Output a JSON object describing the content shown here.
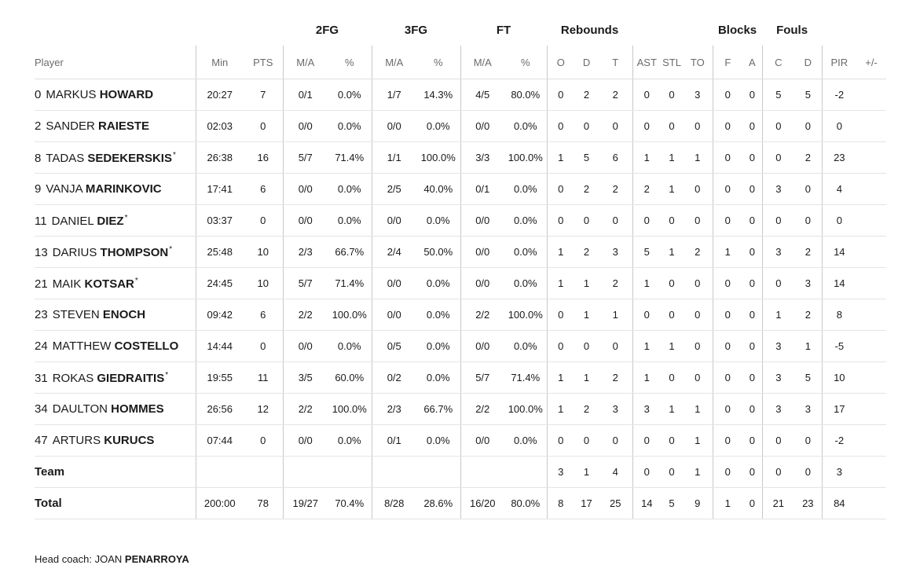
{
  "groups": {
    "fg2": "2FG",
    "fg3": "3FG",
    "ft": "FT",
    "rebounds": "Rebounds",
    "blocks": "Blocks",
    "fouls": "Fouls"
  },
  "columns": {
    "player": "Player",
    "min": "Min",
    "pts": "PTS",
    "fg2_ma": "M/A",
    "fg2_pct": "%",
    "fg3_ma": "M/A",
    "fg3_pct": "%",
    "ft_ma": "M/A",
    "ft_pct": "%",
    "reb_o": "O",
    "reb_d": "D",
    "reb_t": "T",
    "ast": "AST",
    "stl": "STL",
    "to": "TO",
    "blk_f": "F",
    "blk_a": "A",
    "foul_c": "C",
    "foul_d": "D",
    "pir": "PIR",
    "plus_minus": "+/-"
  },
  "players": [
    {
      "num": "0",
      "first": "MARKUS",
      "last": "HOWARD",
      "starter": false,
      "min": "20:27",
      "pts": "7",
      "fg2_ma": "0/1",
      "fg2_pct": "0.0%",
      "fg3_ma": "1/7",
      "fg3_pct": "14.3%",
      "ft_ma": "4/5",
      "ft_pct": "80.0%",
      "reb_o": "0",
      "reb_d": "2",
      "reb_t": "2",
      "ast": "0",
      "stl": "0",
      "to": "3",
      "blk_f": "0",
      "blk_a": "0",
      "foul_c": "5",
      "foul_d": "5",
      "pir": "-2",
      "plus_minus": ""
    },
    {
      "num": "2",
      "first": "SANDER",
      "last": "RAIESTE",
      "starter": false,
      "min": "02:03",
      "pts": "0",
      "fg2_ma": "0/0",
      "fg2_pct": "0.0%",
      "fg3_ma": "0/0",
      "fg3_pct": "0.0%",
      "ft_ma": "0/0",
      "ft_pct": "0.0%",
      "reb_o": "0",
      "reb_d": "0",
      "reb_t": "0",
      "ast": "0",
      "stl": "0",
      "to": "0",
      "blk_f": "0",
      "blk_a": "0",
      "foul_c": "0",
      "foul_d": "0",
      "pir": "0",
      "plus_minus": ""
    },
    {
      "num": "8",
      "first": "TADAS",
      "last": "SEDEKERSKIS",
      "starter": true,
      "min": "26:38",
      "pts": "16",
      "fg2_ma": "5/7",
      "fg2_pct": "71.4%",
      "fg3_ma": "1/1",
      "fg3_pct": "100.0%",
      "ft_ma": "3/3",
      "ft_pct": "100.0%",
      "reb_o": "1",
      "reb_d": "5",
      "reb_t": "6",
      "ast": "1",
      "stl": "1",
      "to": "1",
      "blk_f": "0",
      "blk_a": "0",
      "foul_c": "0",
      "foul_d": "2",
      "pir": "23",
      "plus_minus": ""
    },
    {
      "num": "9",
      "first": "VANJA",
      "last": "MARINKOVIC",
      "starter": false,
      "min": "17:41",
      "pts": "6",
      "fg2_ma": "0/0",
      "fg2_pct": "0.0%",
      "fg3_ma": "2/5",
      "fg3_pct": "40.0%",
      "ft_ma": "0/1",
      "ft_pct": "0.0%",
      "reb_o": "0",
      "reb_d": "2",
      "reb_t": "2",
      "ast": "2",
      "stl": "1",
      "to": "0",
      "blk_f": "0",
      "blk_a": "0",
      "foul_c": "3",
      "foul_d": "0",
      "pir": "4",
      "plus_minus": ""
    },
    {
      "num": "11",
      "first": "DANIEL",
      "last": "DIEZ",
      "starter": true,
      "min": "03:37",
      "pts": "0",
      "fg2_ma": "0/0",
      "fg2_pct": "0.0%",
      "fg3_ma": "0/0",
      "fg3_pct": "0.0%",
      "ft_ma": "0/0",
      "ft_pct": "0.0%",
      "reb_o": "0",
      "reb_d": "0",
      "reb_t": "0",
      "ast": "0",
      "stl": "0",
      "to": "0",
      "blk_f": "0",
      "blk_a": "0",
      "foul_c": "0",
      "foul_d": "0",
      "pir": "0",
      "plus_minus": ""
    },
    {
      "num": "13",
      "first": "DARIUS",
      "last": "THOMPSON",
      "starter": true,
      "min": "25:48",
      "pts": "10",
      "fg2_ma": "2/3",
      "fg2_pct": "66.7%",
      "fg3_ma": "2/4",
      "fg3_pct": "50.0%",
      "ft_ma": "0/0",
      "ft_pct": "0.0%",
      "reb_o": "1",
      "reb_d": "2",
      "reb_t": "3",
      "ast": "5",
      "stl": "1",
      "to": "2",
      "blk_f": "1",
      "blk_a": "0",
      "foul_c": "3",
      "foul_d": "2",
      "pir": "14",
      "plus_minus": ""
    },
    {
      "num": "21",
      "first": "MAIK",
      "last": "KOTSAR",
      "starter": true,
      "min": "24:45",
      "pts": "10",
      "fg2_ma": "5/7",
      "fg2_pct": "71.4%",
      "fg3_ma": "0/0",
      "fg3_pct": "0.0%",
      "ft_ma": "0/0",
      "ft_pct": "0.0%",
      "reb_o": "1",
      "reb_d": "1",
      "reb_t": "2",
      "ast": "1",
      "stl": "0",
      "to": "0",
      "blk_f": "0",
      "blk_a": "0",
      "foul_c": "0",
      "foul_d": "3",
      "pir": "14",
      "plus_minus": ""
    },
    {
      "num": "23",
      "first": "STEVEN",
      "last": "ENOCH",
      "starter": false,
      "min": "09:42",
      "pts": "6",
      "fg2_ma": "2/2",
      "fg2_pct": "100.0%",
      "fg3_ma": "0/0",
      "fg3_pct": "0.0%",
      "ft_ma": "2/2",
      "ft_pct": "100.0%",
      "reb_o": "0",
      "reb_d": "1",
      "reb_t": "1",
      "ast": "0",
      "stl": "0",
      "to": "0",
      "blk_f": "0",
      "blk_a": "0",
      "foul_c": "1",
      "foul_d": "2",
      "pir": "8",
      "plus_minus": ""
    },
    {
      "num": "24",
      "first": "MATTHEW",
      "last": "COSTELLO",
      "starter": false,
      "min": "14:44",
      "pts": "0",
      "fg2_ma": "0/0",
      "fg2_pct": "0.0%",
      "fg3_ma": "0/5",
      "fg3_pct": "0.0%",
      "ft_ma": "0/0",
      "ft_pct": "0.0%",
      "reb_o": "0",
      "reb_d": "0",
      "reb_t": "0",
      "ast": "1",
      "stl": "1",
      "to": "0",
      "blk_f": "0",
      "blk_a": "0",
      "foul_c": "3",
      "foul_d": "1",
      "pir": "-5",
      "plus_minus": ""
    },
    {
      "num": "31",
      "first": "ROKAS",
      "last": "GIEDRAITIS",
      "starter": true,
      "min": "19:55",
      "pts": "11",
      "fg2_ma": "3/5",
      "fg2_pct": "60.0%",
      "fg3_ma": "0/2",
      "fg3_pct": "0.0%",
      "ft_ma": "5/7",
      "ft_pct": "71.4%",
      "reb_o": "1",
      "reb_d": "1",
      "reb_t": "2",
      "ast": "1",
      "stl": "0",
      "to": "0",
      "blk_f": "0",
      "blk_a": "0",
      "foul_c": "3",
      "foul_d": "5",
      "pir": "10",
      "plus_minus": ""
    },
    {
      "num": "34",
      "first": "DAULTON",
      "last": "HOMMES",
      "starter": false,
      "min": "26:56",
      "pts": "12",
      "fg2_ma": "2/2",
      "fg2_pct": "100.0%",
      "fg3_ma": "2/3",
      "fg3_pct": "66.7%",
      "ft_ma": "2/2",
      "ft_pct": "100.0%",
      "reb_o": "1",
      "reb_d": "2",
      "reb_t": "3",
      "ast": "3",
      "stl": "1",
      "to": "1",
      "blk_f": "0",
      "blk_a": "0",
      "foul_c": "3",
      "foul_d": "3",
      "pir": "17",
      "plus_minus": ""
    },
    {
      "num": "47",
      "first": "ARTURS",
      "last": "KURUCS",
      "starter": false,
      "min": "07:44",
      "pts": "0",
      "fg2_ma": "0/0",
      "fg2_pct": "0.0%",
      "fg3_ma": "0/1",
      "fg3_pct": "0.0%",
      "ft_ma": "0/0",
      "ft_pct": "0.0%",
      "reb_o": "0",
      "reb_d": "0",
      "reb_t": "0",
      "ast": "0",
      "stl": "0",
      "to": "1",
      "blk_f": "0",
      "blk_a": "0",
      "foul_c": "0",
      "foul_d": "0",
      "pir": "-2",
      "plus_minus": ""
    }
  ],
  "team_row": {
    "label": "Team",
    "min": "",
    "pts": "",
    "fg2_ma": "",
    "fg2_pct": "",
    "fg3_ma": "",
    "fg3_pct": "",
    "ft_ma": "",
    "ft_pct": "",
    "reb_o": "3",
    "reb_d": "1",
    "reb_t": "4",
    "ast": "0",
    "stl": "0",
    "to": "1",
    "blk_f": "0",
    "blk_a": "0",
    "foul_c": "0",
    "foul_d": "0",
    "pir": "3",
    "plus_minus": ""
  },
  "total_row": {
    "label": "Total",
    "min": "200:00",
    "pts": "78",
    "fg2_ma": "19/27",
    "fg2_pct": "70.4%",
    "fg3_ma": "8/28",
    "fg3_pct": "28.6%",
    "ft_ma": "16/20",
    "ft_pct": "80.0%",
    "reb_o": "8",
    "reb_d": "17",
    "reb_t": "25",
    "ast": "14",
    "stl": "5",
    "to": "9",
    "blk_f": "1",
    "blk_a": "0",
    "foul_c": "21",
    "foul_d": "23",
    "pir": "84",
    "plus_minus": ""
  },
  "coach": {
    "label": "Head coach:",
    "first": "JOAN",
    "last": "PENARROYA"
  },
  "starter_mark": "*"
}
